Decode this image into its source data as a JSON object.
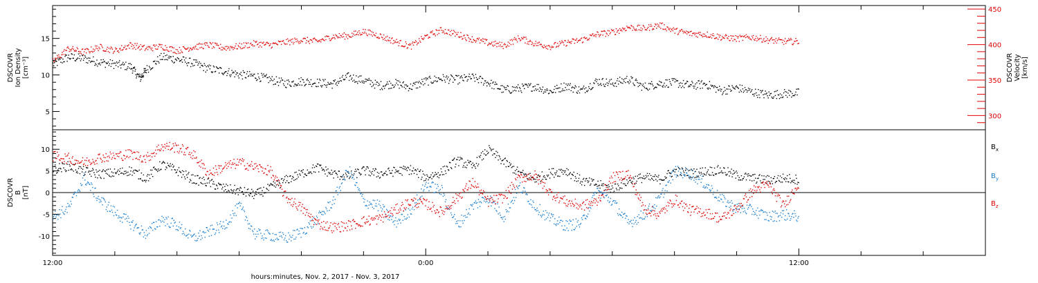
{
  "chart_data": [
    {
      "type": "scatter",
      "panel": "top",
      "left_axis": {
        "label_lines": [
          "DSCOVR",
          "Ion Density",
          "[cm⁻³]"
        ],
        "range": [
          2.5,
          19.5
        ],
        "ticks": [
          5,
          10,
          15
        ],
        "color": "#000000"
      },
      "right_axis": {
        "label_lines": [
          "DSCOVR",
          "Velocity",
          "[km/s]"
        ],
        "range": [
          280,
          455
        ],
        "ticks": [
          300,
          350,
          400,
          450
        ],
        "color": "#e00000"
      },
      "series": [
        {
          "axis": "left",
          "color": "#000000",
          "points": [
            [
              0,
              11.5
            ],
            [
              0.5,
              12.5
            ],
            [
              1,
              12.3
            ],
            [
              1.5,
              11.8
            ],
            [
              2,
              11.5
            ],
            [
              2.5,
              11.2
            ],
            [
              2.8,
              9.6
            ],
            [
              3,
              10.8
            ],
            [
              3.5,
              12.5
            ],
            [
              4,
              12.2
            ],
            [
              4.5,
              11.7
            ],
            [
              5,
              10.9
            ],
            [
              5.5,
              10.6
            ],
            [
              6,
              10.1
            ],
            [
              6.5,
              9.9
            ],
            [
              7,
              9.4
            ],
            [
              7.5,
              8.9
            ],
            [
              8,
              9.2
            ],
            [
              8.5,
              9.0
            ],
            [
              9,
              8.8
            ],
            [
              9.5,
              9.8
            ],
            [
              10,
              9.3
            ],
            [
              10.5,
              8.6
            ],
            [
              11,
              8.9
            ],
            [
              11.5,
              8.4
            ],
            [
              12,
              9.2
            ],
            [
              12.5,
              9.6
            ],
            [
              13,
              9.4
            ],
            [
              13.5,
              9.7
            ],
            [
              14,
              9.0
            ],
            [
              14.5,
              8.0
            ],
            [
              15,
              8.2
            ],
            [
              15.5,
              8.5
            ],
            [
              16,
              7.8
            ],
            [
              16.5,
              8.6
            ],
            [
              17,
              7.9
            ],
            [
              17.5,
              9.2
            ],
            [
              18,
              8.9
            ],
            [
              18.5,
              9.5
            ],
            [
              19,
              8.4
            ],
            [
              19.5,
              8.9
            ],
            [
              20,
              9.0
            ],
            [
              20.5,
              8.6
            ],
            [
              21,
              8.8
            ],
            [
              21.5,
              7.9
            ],
            [
              22,
              8.3
            ],
            [
              22.5,
              7.7
            ],
            [
              23,
              7.3
            ],
            [
              23.5,
              7.5
            ],
            [
              24,
              7.6
            ]
          ]
        },
        {
          "axis": "right",
          "color": "#e00000",
          "points": [
            [
              0,
              377
            ],
            [
              0.5,
              395
            ],
            [
              1,
              390
            ],
            [
              1.5,
              397
            ],
            [
              2,
              392
            ],
            [
              2.5,
              400
            ],
            [
              3,
              395
            ],
            [
              3.5,
              398
            ],
            [
              4,
              392
            ],
            [
              4.5,
              397
            ],
            [
              5,
              400
            ],
            [
              5.5,
              396
            ],
            [
              6,
              398
            ],
            [
              6.5,
              402
            ],
            [
              7,
              400
            ],
            [
              7.5,
              404
            ],
            [
              8,
              407
            ],
            [
              8.5,
              405
            ],
            [
              9,
              412
            ],
            [
              9.5,
              413
            ],
            [
              10,
              419
            ],
            [
              10.5,
              413
            ],
            [
              11,
              405
            ],
            [
              11.5,
              398
            ],
            [
              12,
              412
            ],
            [
              12.5,
              421
            ],
            [
              13,
              415
            ],
            [
              13.5,
              408
            ],
            [
              14,
              403
            ],
            [
              14.5,
              399
            ],
            [
              15,
              410
            ],
            [
              15.5,
              402
            ],
            [
              16,
              398
            ],
            [
              16.5,
              403
            ],
            [
              17,
              407
            ],
            [
              17.5,
              415
            ],
            [
              18,
              418
            ],
            [
              18.5,
              425
            ],
            [
              19,
              423
            ],
            [
              19.5,
              428
            ],
            [
              20,
              420
            ],
            [
              20.5,
              416
            ],
            [
              21,
              415
            ],
            [
              21.5,
              411
            ],
            [
              22,
              409
            ],
            [
              22.5,
              411
            ],
            [
              23,
              407
            ],
            [
              23.5,
              405
            ],
            [
              24,
              405
            ]
          ]
        }
      ]
    },
    {
      "type": "scatter",
      "panel": "bottom",
      "left_axis": {
        "label_lines": [
          "DSCOVR",
          "B",
          "[nT]"
        ],
        "range": [
          -14.5,
          14.5
        ],
        "ticks": [
          -10,
          -5,
          0,
          5,
          10
        ],
        "color": "#000000"
      },
      "zero_line": true,
      "legend": {
        "placement": "right"
      },
      "series": [
        {
          "name": "Bx",
          "name_base": "B",
          "name_sub": "x",
          "color": "#000000",
          "points": [
            [
              0,
              5.5
            ],
            [
              0.5,
              6.2
            ],
            [
              1,
              5.0
            ],
            [
              1.5,
              4.4
            ],
            [
              2,
              4.6
            ],
            [
              2.5,
              5.2
            ],
            [
              3,
              3.4
            ],
            [
              3.5,
              6.6
            ],
            [
              4,
              5.1
            ],
            [
              4.5,
              3.2
            ],
            [
              5,
              2.4
            ],
            [
              5.5,
              1.1
            ],
            [
              6,
              0.5
            ],
            [
              6.5,
              -0.4
            ],
            [
              7,
              1.2
            ],
            [
              7.5,
              3.0
            ],
            [
              8,
              4.5
            ],
            [
              8.5,
              5.9
            ],
            [
              9,
              4.4
            ],
            [
              9.5,
              3.8
            ],
            [
              10,
              5.2
            ],
            [
              10.5,
              4.4
            ],
            [
              11,
              5.0
            ],
            [
              11.5,
              5.4
            ],
            [
              12,
              3.6
            ],
            [
              12.5,
              4.8
            ],
            [
              13,
              7.5
            ],
            [
              13.5,
              6.1
            ],
            [
              14,
              10.0
            ],
            [
              14.5,
              7.2
            ],
            [
              15,
              4.6
            ],
            [
              15.5,
              3.2
            ],
            [
              16,
              4.6
            ],
            [
              16.5,
              5.2
            ],
            [
              17,
              2.8
            ],
            [
              17.5,
              2.0
            ],
            [
              18,
              1.0
            ],
            [
              18.5,
              2.8
            ],
            [
              19,
              3.6
            ],
            [
              19.5,
              3.1
            ],
            [
              20,
              5.1
            ],
            [
              20.5,
              4.5
            ],
            [
              21,
              5.0
            ],
            [
              21.5,
              5.3
            ],
            [
              22,
              4.0
            ],
            [
              22.5,
              3.4
            ],
            [
              23,
              3.0
            ],
            [
              23.5,
              3.4
            ],
            [
              24,
              3.1
            ]
          ]
        },
        {
          "name": "By",
          "name_base": "B",
          "name_sub": "y",
          "color": "#1a7fd0",
          "points": [
            [
              0,
              -5.5
            ],
            [
              0.5,
              -3.5
            ],
            [
              1,
              3.5
            ],
            [
              1.5,
              -1.5
            ],
            [
              2,
              -4.5
            ],
            [
              2.5,
              -7.0
            ],
            [
              3,
              -9.5
            ],
            [
              3.5,
              -6.0
            ],
            [
              4,
              -7.5
            ],
            [
              4.5,
              -10.5
            ],
            [
              5,
              -9.0
            ],
            [
              5.5,
              -7.5
            ],
            [
              6,
              -3.0
            ],
            [
              6.5,
              -9.5
            ],
            [
              7,
              -9.8
            ],
            [
              7.5,
              -10.5
            ],
            [
              8,
              -9.0
            ],
            [
              8.5,
              -6.0
            ],
            [
              9,
              -2.0
            ],
            [
              9.5,
              5.5
            ],
            [
              10,
              -2.0
            ],
            [
              10.5,
              -3.0
            ],
            [
              11,
              -7.0
            ],
            [
              11.5,
              -4.0
            ],
            [
              12,
              2.0
            ],
            [
              12.5,
              0.5
            ],
            [
              13,
              -7.5
            ],
            [
              13.5,
              -3.0
            ],
            [
              14,
              -1.0
            ],
            [
              14.5,
              -5.5
            ],
            [
              15,
              1.5
            ],
            [
              15.5,
              -3.0
            ],
            [
              16,
              -6.0
            ],
            [
              16.5,
              -7.5
            ],
            [
              17,
              -7.0
            ],
            [
              17.5,
              0.5
            ],
            [
              18,
              -2.0
            ],
            [
              18.5,
              -7.0
            ],
            [
              19,
              -5.0
            ],
            [
              19.5,
              -1.5
            ],
            [
              20,
              5.0
            ],
            [
              20.5,
              4.5
            ],
            [
              21,
              2.0
            ],
            [
              21.5,
              -1.5
            ],
            [
              22,
              -3.5
            ],
            [
              22.5,
              -4.0
            ],
            [
              23,
              -5.5
            ],
            [
              23.5,
              -5.0
            ],
            [
              24,
              -5.5
            ]
          ]
        },
        {
          "name": "Bz",
          "name_base": "B",
          "name_sub": "z",
          "color": "#e00000",
          "points": [
            [
              0,
              8.5
            ],
            [
              0.5,
              8.0
            ],
            [
              1,
              7.0
            ],
            [
              1.5,
              8.2
            ],
            [
              2,
              8.5
            ],
            [
              2.5,
              9.0
            ],
            [
              3,
              8.0
            ],
            [
              3.5,
              10.8
            ],
            [
              4,
              10.5
            ],
            [
              4.5,
              9.0
            ],
            [
              5,
              4.5
            ],
            [
              5.5,
              6.0
            ],
            [
              6,
              7.0
            ],
            [
              6.5,
              6.0
            ],
            [
              7,
              5.0
            ],
            [
              7.5,
              -1.0
            ],
            [
              8,
              -3.5
            ],
            [
              8.5,
              -7.0
            ],
            [
              9,
              -8.0
            ],
            [
              9.5,
              -7.5
            ],
            [
              10,
              -6.5
            ],
            [
              10.5,
              -6.0
            ],
            [
              11,
              -4.0
            ],
            [
              11.5,
              -2.0
            ],
            [
              12,
              -2.5
            ],
            [
              12.5,
              -4.5
            ],
            [
              13,
              -1.0
            ],
            [
              13.5,
              2.5
            ],
            [
              14,
              -2.0
            ],
            [
              14.5,
              -1.0
            ],
            [
              15,
              3.5
            ],
            [
              15.5,
              4.0
            ],
            [
              16,
              0.0
            ],
            [
              16.5,
              -2.0
            ],
            [
              17,
              -3.0
            ],
            [
              17.5,
              -2.0
            ],
            [
              18,
              3.5
            ],
            [
              18.5,
              4.5
            ],
            [
              19,
              -3.5
            ],
            [
              19.5,
              -5.0
            ],
            [
              20,
              -1.5
            ],
            [
              20.5,
              -4.0
            ],
            [
              21,
              -4.5
            ],
            [
              21.5,
              -6.0
            ],
            [
              22,
              -3.5
            ],
            [
              22.5,
              0.5
            ],
            [
              23,
              2.0
            ],
            [
              23.5,
              -3.0
            ],
            [
              24,
              2.5
            ]
          ]
        }
      ]
    }
  ],
  "x_axis": {
    "range_hours": [
      0,
      30
    ],
    "tick_labels": [
      {
        "hour": 0,
        "label": "12:00"
      },
      {
        "hour": 12,
        "label": "0:00"
      },
      {
        "hour": 24,
        "label": "12:00"
      }
    ],
    "minor_tick_interval_hours": 2,
    "label": "hours:minutes, Nov.  2, 2017 - Nov.  3, 2017"
  }
}
